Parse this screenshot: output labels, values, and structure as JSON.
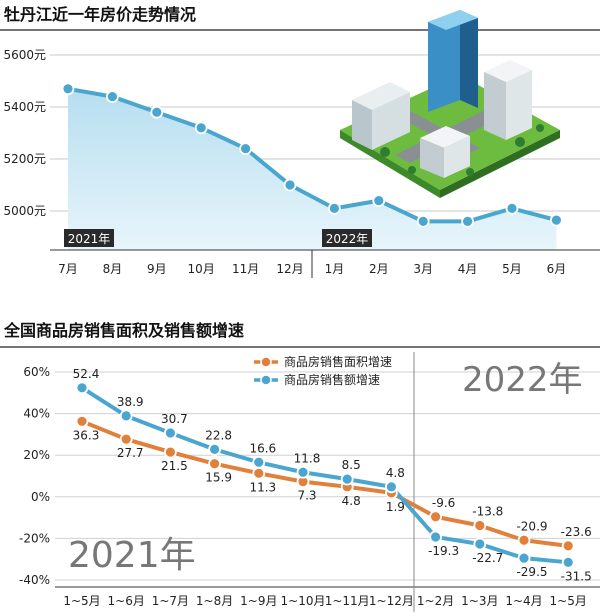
{
  "chart_data": [
    {
      "type": "area",
      "title": "牡丹江近一年房价走势情况",
      "categories": [
        "7月",
        "8月",
        "9月",
        "10月",
        "11月",
        "12月",
        "1月",
        "2月",
        "3月",
        "4月",
        "5月",
        "6月"
      ],
      "values": [
        5470,
        5440,
        5380,
        5320,
        5240,
        5100,
        5010,
        5040,
        4960,
        4960,
        5010,
        4965
      ],
      "ylim": [
        4850,
        5650
      ],
      "yticks": [
        {
          "value": 5000,
          "label": "5000元"
        },
        {
          "value": 5200,
          "label": "5200元"
        },
        {
          "value": 5400,
          "label": "5400元"
        },
        {
          "value": 5600,
          "label": "5600元"
        }
      ],
      "year_labels": [
        {
          "text": "2021年",
          "at_index": 0
        },
        {
          "text": "2022年",
          "at_index": 6
        }
      ],
      "grid": true,
      "line_color": "#4aa6cf",
      "fill_top_color": "#b6def0",
      "fill_bottom_color": "#e8f5fb"
    },
    {
      "type": "line",
      "title": "全国商品房销售面积及销售额增速",
      "categories": [
        "1~5月",
        "1~6月",
        "1~7月",
        "1~8月",
        "1~9月",
        "1~10月",
        "1~11月",
        "1~12月",
        "1~2月",
        "1~3月",
        "1~4月",
        "1~5月"
      ],
      "series": [
        {
          "name": "商品房销售面积增速",
          "color": "#e0803a",
          "values": [
            36.3,
            27.7,
            21.5,
            15.9,
            11.3,
            7.3,
            4.8,
            1.9,
            -9.6,
            -13.8,
            -20.9,
            -23.6
          ],
          "labels": [
            "36.3",
            "27.7",
            "21.5",
            "15.9",
            "11.3",
            "7.3",
            "4.8",
            "1.9",
            "-9.6",
            "-13.8",
            "-20.9",
            "-23.6"
          ]
        },
        {
          "name": "商品房销售额增速",
          "color": "#4aa6cf",
          "values": [
            52.4,
            38.9,
            30.7,
            22.8,
            16.6,
            11.8,
            8.5,
            4.8,
            -19.3,
            -22.7,
            -29.5,
            -31.5
          ],
          "labels": [
            "52.4",
            "38.9",
            "30.7",
            "22.8",
            "16.6",
            "11.8",
            "8.5",
            "4.8",
            "-19.3",
            "-22.7",
            "-29.5",
            "-31.5"
          ]
        }
      ],
      "ylim": [
        -40,
        60
      ],
      "yticks": [
        {
          "value": 60,
          "label": "60%"
        },
        {
          "value": 40,
          "label": "40%"
        },
        {
          "value": 20,
          "label": "20%"
        },
        {
          "value": 0,
          "label": "0%"
        },
        {
          "value": -20,
          "label": "-20%"
        },
        {
          "value": -40,
          "label": "-40%"
        }
      ],
      "year_labels": [
        "2021年",
        "2022年"
      ],
      "legend_position": "top-right",
      "grid": true
    }
  ]
}
